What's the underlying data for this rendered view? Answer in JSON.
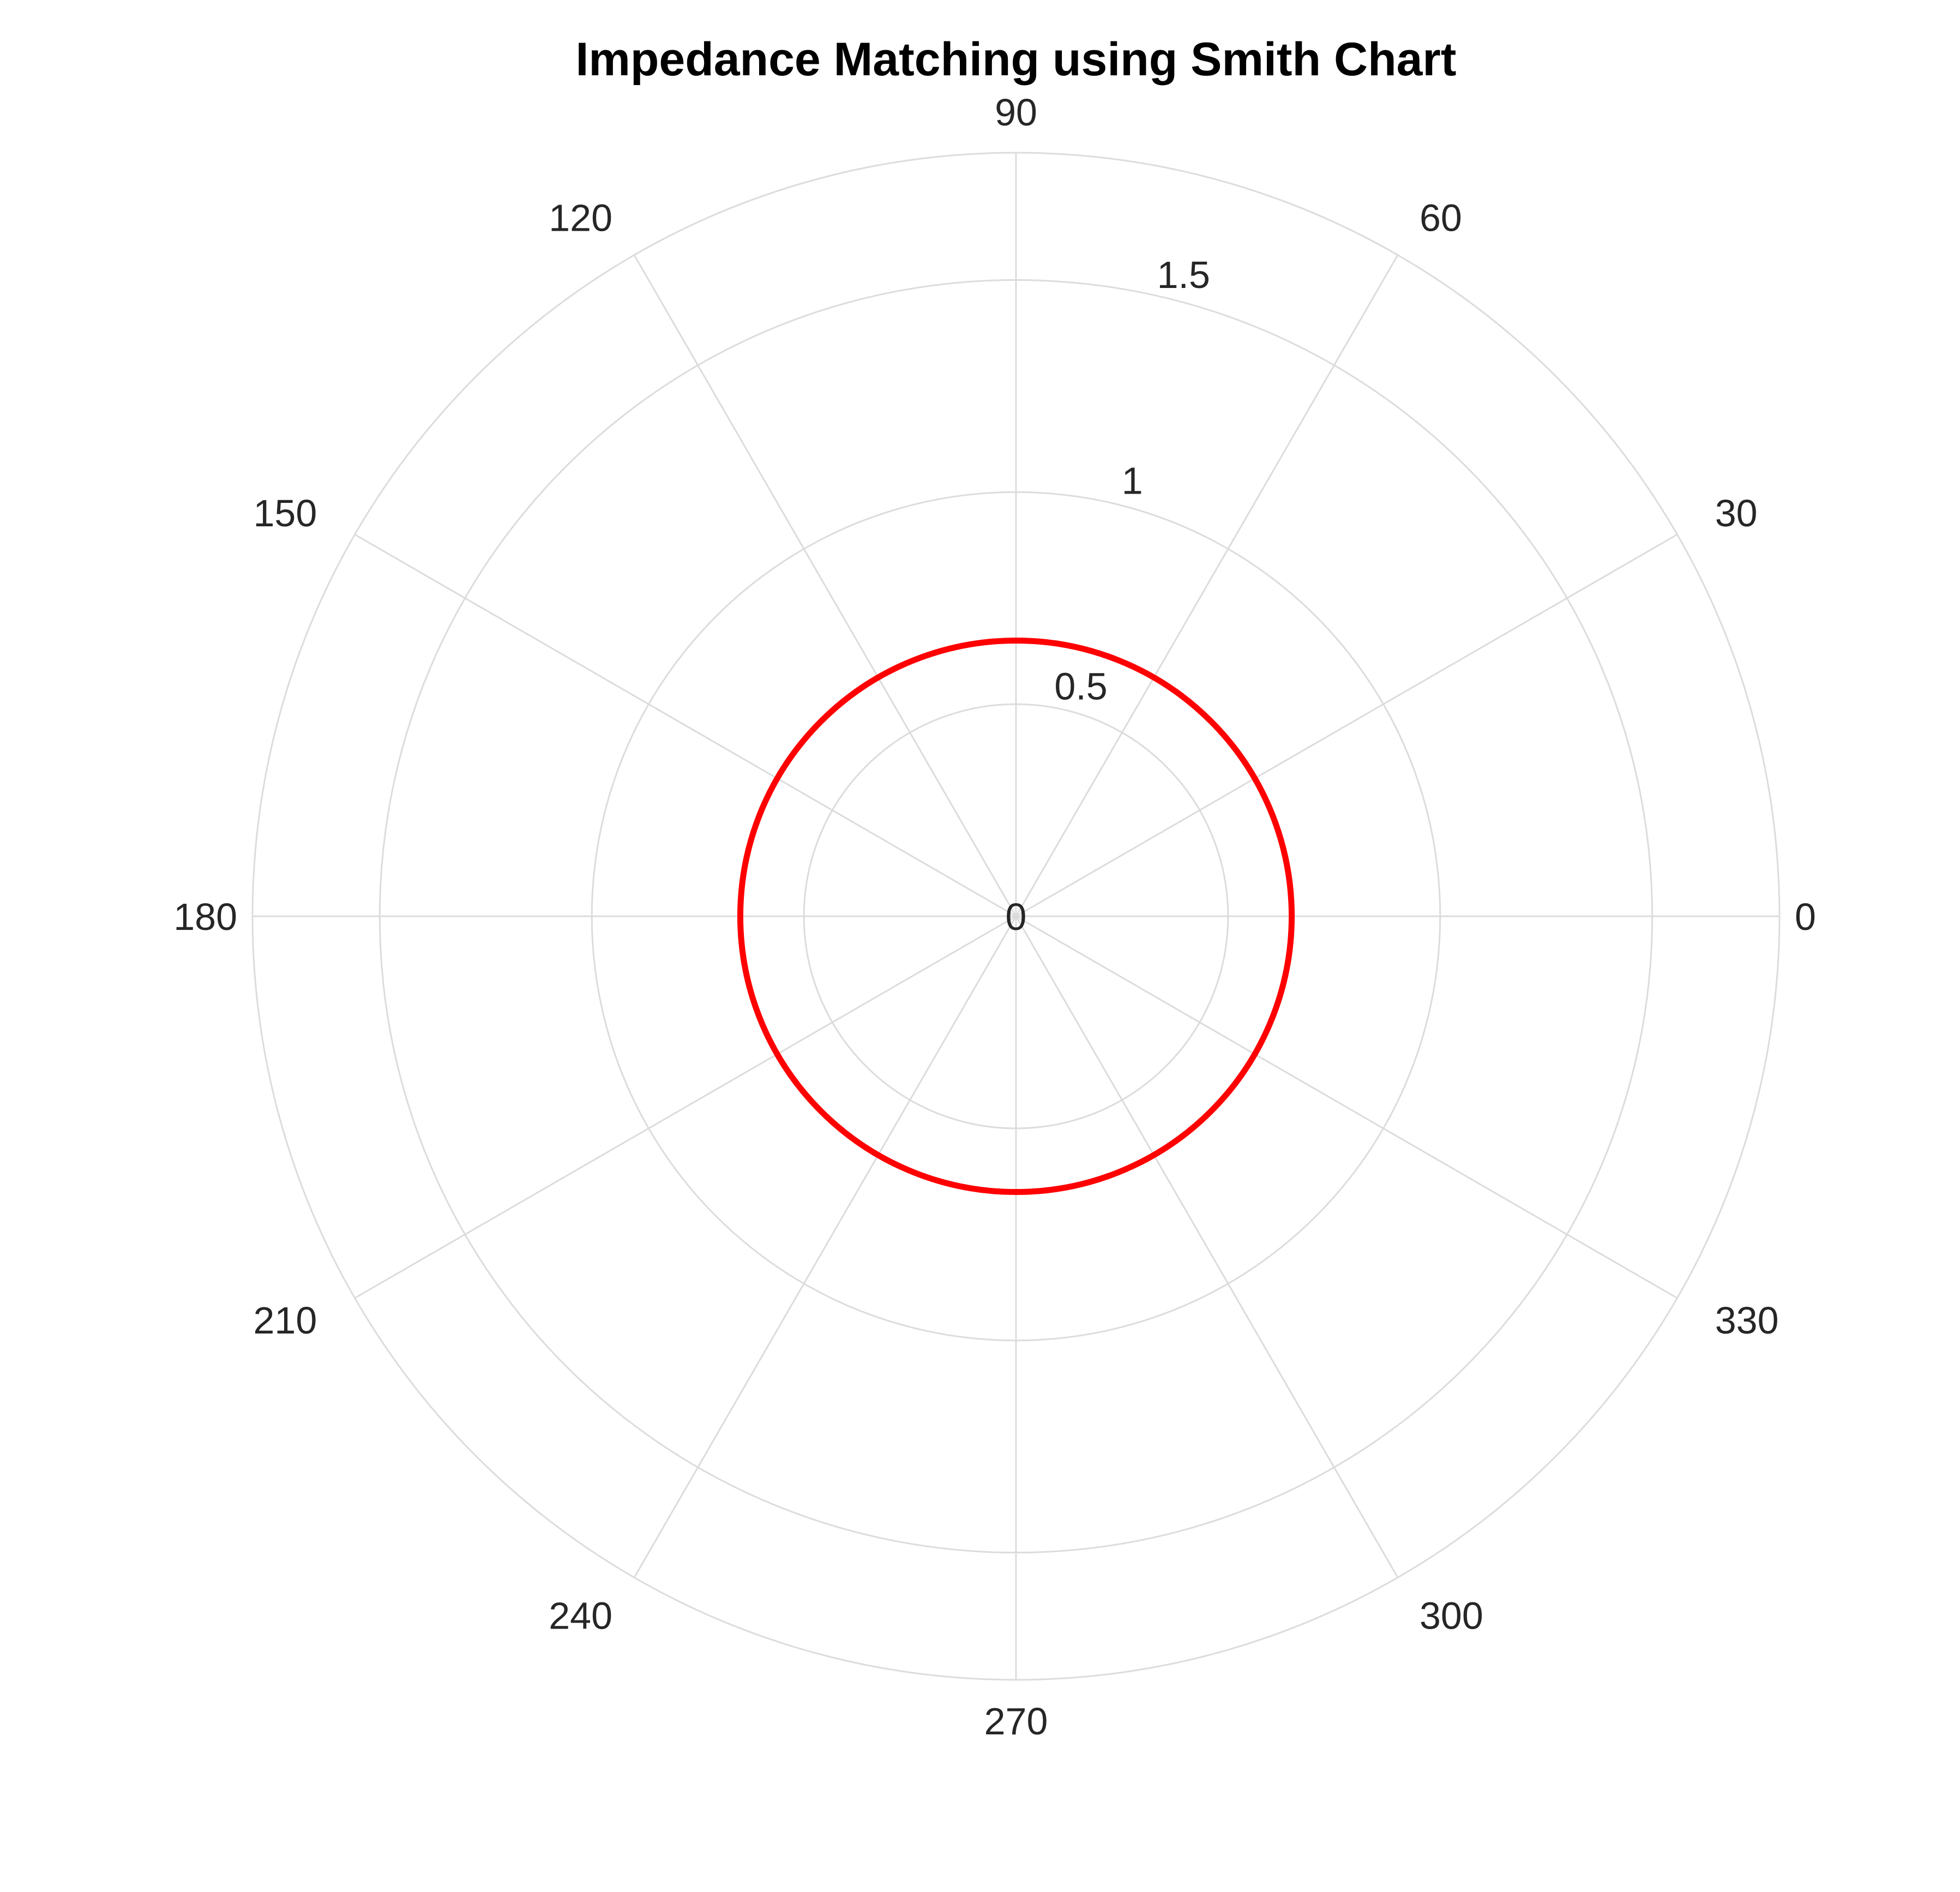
{
  "chart_data": {
    "type": "polar-line",
    "title": "Impedance Matching using Smith Chart",
    "angular_axis": {
      "unit": "degrees",
      "direction": "counterclockwise",
      "zero_position": "east",
      "ticks": [
        0,
        30,
        60,
        90,
        120,
        150,
        180,
        210,
        240,
        270,
        300,
        330
      ],
      "tick_labels": [
        "0",
        "30",
        "60",
        "90",
        "120",
        "150",
        "180",
        "210",
        "240",
        "270",
        "300",
        "330"
      ]
    },
    "radial_axis": {
      "range": [
        0,
        1.8
      ],
      "ticks": [
        0,
        0.5,
        1,
        1.5
      ],
      "tick_labels": [
        "0",
        "0.5",
        "1",
        "1.5"
      ],
      "grid": true
    },
    "series": [
      {
        "color": "#ff0000",
        "shape": "circle",
        "r": [
          0.65,
          0.65,
          0.65,
          0.65,
          0.65,
          0.65,
          0.65,
          0.65,
          0.65,
          0.65,
          0.65,
          0.65,
          0.65
        ],
        "theta": [
          0,
          30,
          60,
          90,
          120,
          150,
          180,
          210,
          240,
          270,
          300,
          330,
          360
        ]
      }
    ],
    "legend": "none",
    "background": "#ffffff",
    "grid_color": "#dcdcdc"
  }
}
